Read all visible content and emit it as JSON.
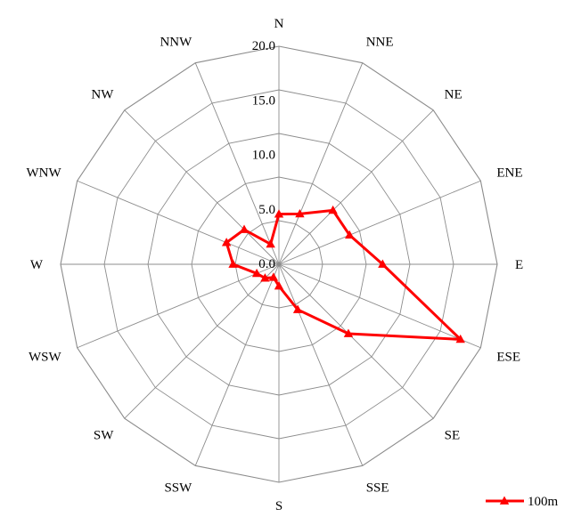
{
  "chart_data": {
    "type": "radar",
    "directions": [
      "N",
      "NNE",
      "NE",
      "ENE",
      "E",
      "ESE",
      "SE",
      "SSE",
      "S",
      "SSW",
      "SW",
      "WSW",
      "W",
      "WNW",
      "NW",
      "NNW"
    ],
    "radial_ticks": [
      "0.0",
      "5.0",
      "10.0",
      "15.0",
      "20.0"
    ],
    "rlim": [
      0,
      20
    ],
    "grid": true,
    "legend_position": "bottom-right",
    "series": [
      {
        "name": "100m",
        "color": "#ff0000",
        "marker": "triangle",
        "values": [
          4.6,
          5.0,
          7.0,
          7.0,
          9.5,
          18.0,
          9.0,
          4.5,
          2.0,
          1.3,
          1.8,
          2.2,
          4.2,
          5.2,
          4.5,
          2.0
        ]
      }
    ]
  }
}
